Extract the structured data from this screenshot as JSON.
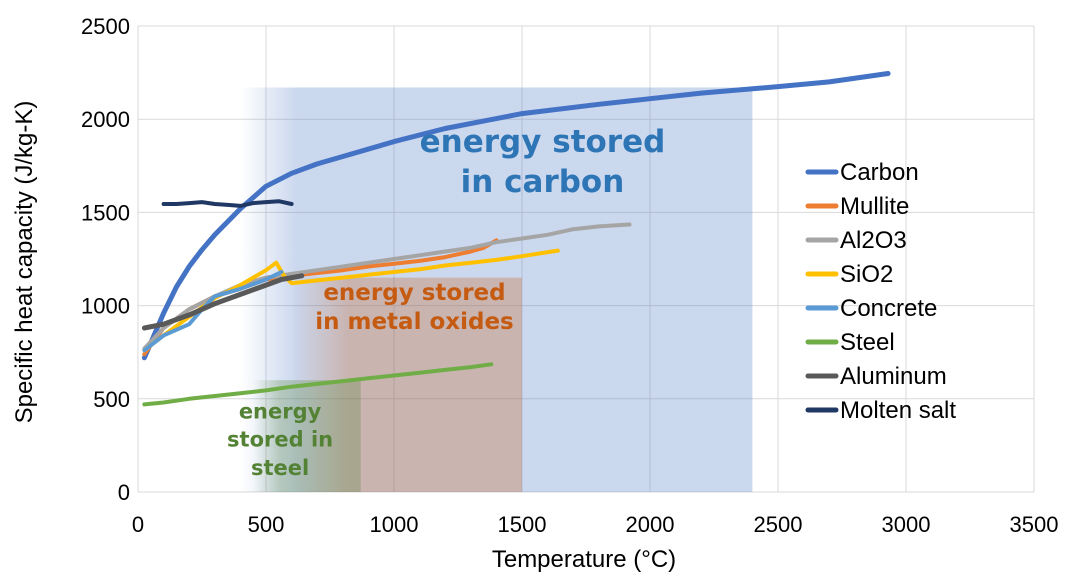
{
  "chart_data": {
    "type": "line",
    "xlabel": "Temperature (°C)",
    "ylabel": "Specific heat capacity (J/kg-K)",
    "xlim": [
      0,
      3500
    ],
    "ylim": [
      0,
      2500
    ],
    "xticks": [
      0,
      500,
      1000,
      1500,
      2000,
      2500,
      3000,
      3500
    ],
    "yticks": [
      0,
      500,
      1000,
      1500,
      2000,
      2500
    ],
    "xtick_labels": [
      "0",
      "500",
      "1000",
      "1500",
      "2000",
      "2500",
      "3000",
      "3500"
    ],
    "ytick_labels": [
      "0",
      "500",
      "1000",
      "1500",
      "2000",
      "2500"
    ],
    "grid": true,
    "legend_position": "right",
    "regions": [
      {
        "name": "carbon",
        "x": [
          400,
          2400
        ],
        "y": [
          0,
          2170
        ],
        "color": "#4472C4",
        "label_lines": [
          "energy stored",
          "in carbon"
        ],
        "label_color": "#2E75B6",
        "label_x": 1580,
        "label_y": [
          1825,
          1610
        ],
        "label_size": 31
      },
      {
        "name": "metal-oxides",
        "x": [
          600,
          1500
        ],
        "y": [
          0,
          1150
        ],
        "color": "#C55A11",
        "label_lines": [
          "energy stored",
          "in metal oxides"
        ],
        "label_color": "#C55A11",
        "label_x": 1080,
        "label_y": [
          1030,
          875
        ],
        "label_size": 23
      },
      {
        "name": "steel",
        "x": [
          450,
          870
        ],
        "y": [
          0,
          600
        ],
        "color": "#548235",
        "label_lines": [
          "energy",
          "stored in",
          "steel"
        ],
        "label_color": "#548235",
        "label_x": 555,
        "label_y": [
          395,
          245,
          90
        ],
        "label_size": 21
      }
    ],
    "series": [
      {
        "name": "Carbon",
        "color": "#4472C4",
        "width": 5,
        "x": [
          25,
          50,
          100,
          150,
          200,
          250,
          300,
          400,
          500,
          600,
          700,
          800,
          1000,
          1200,
          1500,
          1800,
          2000,
          2200,
          2500,
          2700,
          2930
        ],
        "y": [
          720,
          800,
          960,
          1100,
          1210,
          1300,
          1380,
          1520,
          1640,
          1710,
          1760,
          1800,
          1880,
          1950,
          2030,
          2080,
          2110,
          2140,
          2175,
          2200,
          2245
        ]
      },
      {
        "name": "Mullite",
        "color": "#ED7D31",
        "width": 4,
        "x": [
          25,
          100,
          200,
          300,
          400,
          500,
          600,
          700,
          800,
          900,
          1000,
          1100,
          1200,
          1300,
          1350,
          1400
        ],
        "y": [
          740,
          880,
          980,
          1050,
          1090,
          1140,
          1160,
          1175,
          1190,
          1210,
          1225,
          1240,
          1260,
          1290,
          1310,
          1350
        ]
      },
      {
        "name": "Al2O3",
        "color": "#A5A5A5",
        "width": 4,
        "x": [
          25,
          100,
          200,
          300,
          400,
          500,
          600,
          700,
          800,
          900,
          1000,
          1100,
          1200,
          1300,
          1400,
          1500,
          1600,
          1700,
          1800,
          1920
        ],
        "y": [
          770,
          880,
          980,
          1050,
          1110,
          1150,
          1170,
          1190,
          1210,
          1230,
          1250,
          1270,
          1290,
          1310,
          1340,
          1360,
          1380,
          1410,
          1425,
          1435
        ]
      },
      {
        "name": "SiO2",
        "color": "#FFC000",
        "width": 4,
        "x": [
          25,
          100,
          200,
          300,
          400,
          500,
          540,
          570,
          600,
          700,
          800,
          900,
          1000,
          1100,
          1200,
          1300,
          1400,
          1500,
          1640
        ],
        "y": [
          760,
          840,
          940,
          1040,
          1110,
          1190,
          1230,
          1160,
          1120,
          1135,
          1150,
          1165,
          1180,
          1195,
          1215,
          1230,
          1245,
          1265,
          1295
        ]
      },
      {
        "name": "Concrete",
        "color": "#5B9BD5",
        "width": 4,
        "x": [
          25,
          100,
          150,
          200,
          250,
          300,
          400,
          500,
          560
        ],
        "y": [
          760,
          840,
          870,
          900,
          980,
          1050,
          1090,
          1140,
          1180
        ]
      },
      {
        "name": "Steel",
        "color": "#70AD47",
        "width": 4,
        "x": [
          25,
          100,
          200,
          300,
          400,
          500,
          600,
          700,
          800,
          900,
          1000,
          1100,
          1200,
          1300,
          1380
        ],
        "y": [
          470,
          480,
          500,
          515,
          530,
          545,
          565,
          580,
          595,
          610,
          625,
          640,
          655,
          670,
          685
        ]
      },
      {
        "name": "Aluminum",
        "color": "#595959",
        "width": 5,
        "x": [
          25,
          100,
          200,
          300,
          400,
          500,
          560,
          640
        ],
        "y": [
          880,
          900,
          950,
          1010,
          1060,
          1110,
          1140,
          1160
        ]
      },
      {
        "name": "Molten salt",
        "color": "#1F3864",
        "width": 4,
        "x": [
          100,
          150,
          200,
          250,
          300,
          350,
          400,
          450,
          500,
          550,
          600
        ],
        "y": [
          1545,
          1545,
          1550,
          1555,
          1545,
          1540,
          1535,
          1550,
          1555,
          1560,
          1545
        ]
      }
    ]
  }
}
